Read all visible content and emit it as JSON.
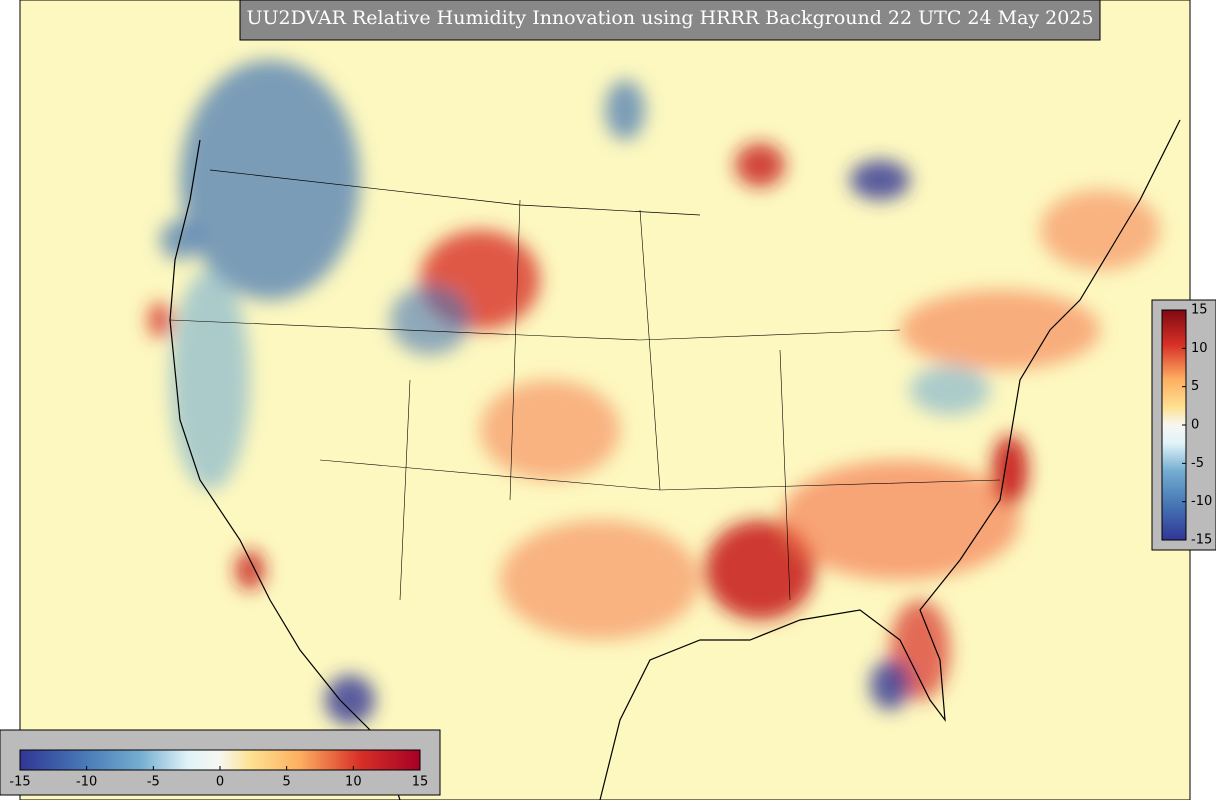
{
  "title": "UU2DVAR Relative Humidity Innovation using HRRR Background 22 UTC 24 May 2025",
  "colorbar_right": {
    "range": [
      -15,
      15
    ],
    "ticks": [
      15,
      10,
      5,
      0,
      -5,
      -10,
      -15
    ]
  },
  "colorbar_bottom": {
    "range": [
      -15,
      15
    ],
    "ticks": [
      -15,
      -10,
      -5,
      0,
      5,
      10,
      15
    ]
  }
}
